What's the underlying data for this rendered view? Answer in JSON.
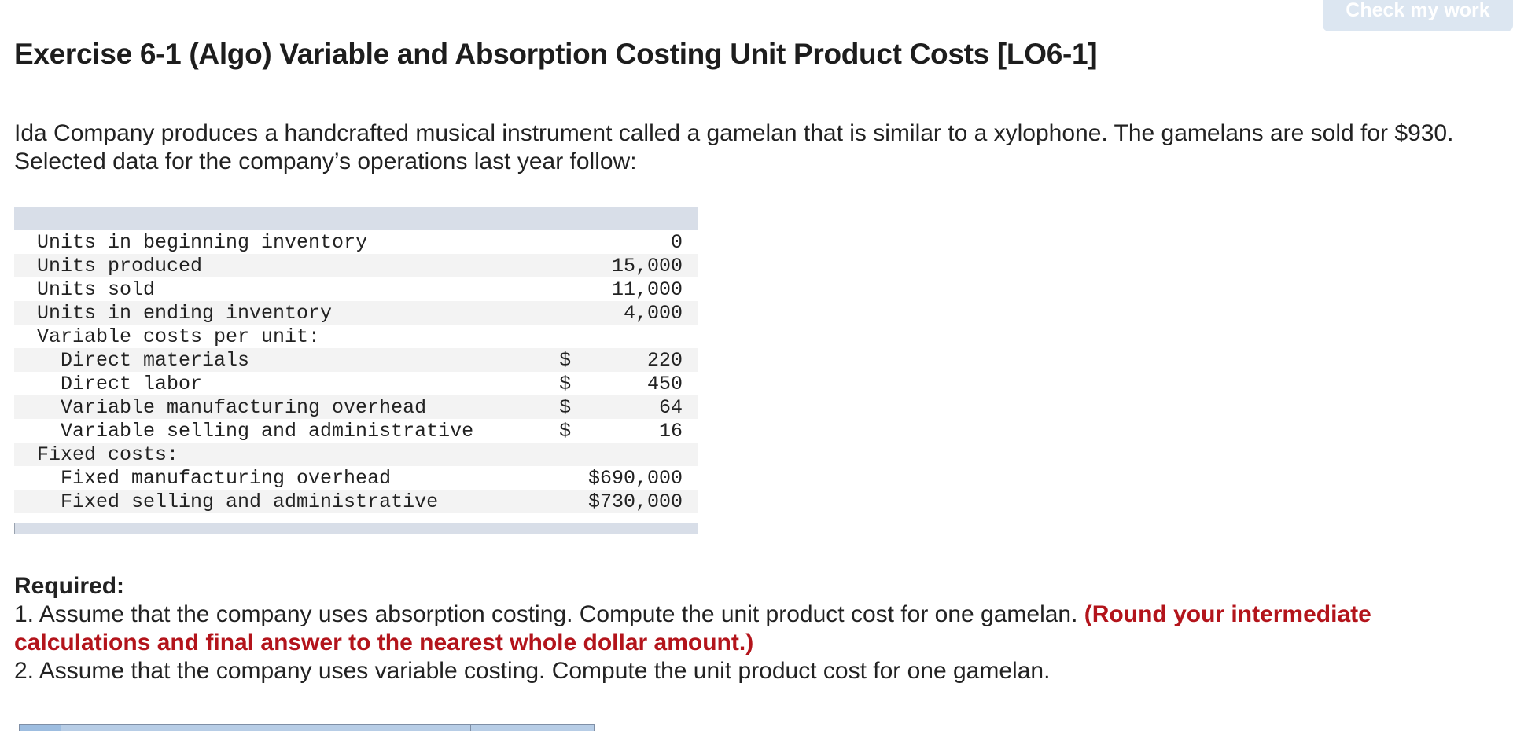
{
  "header": {
    "check_button": "Check my work",
    "title": "Exercise 6-1 (Algo) Variable and Absorption Costing Unit Product Costs [LO6-1]"
  },
  "intro": {
    "text": "Ida Company produces a handcrafted musical instrument called a gamelan that is similar to a xylophone. The gamelans are sold for $930. Selected data for the company’s operations last year follow:"
  },
  "data_table": {
    "rows": [
      {
        "label": "Units in beginning inventory",
        "indent": false,
        "currency": "",
        "value": "0"
      },
      {
        "label": "Units produced",
        "indent": false,
        "currency": "",
        "value": "15,000"
      },
      {
        "label": "Units sold",
        "indent": false,
        "currency": "",
        "value": "11,000"
      },
      {
        "label": "Units in ending inventory",
        "indent": false,
        "currency": "",
        "value": "4,000"
      },
      {
        "label": "Variable costs per unit:",
        "indent": false,
        "currency": "",
        "value": ""
      },
      {
        "label": "Direct materials",
        "indent": true,
        "currency": "$",
        "value": "220"
      },
      {
        "label": "Direct labor",
        "indent": true,
        "currency": "$",
        "value": "450"
      },
      {
        "label": "Variable manufacturing overhead",
        "indent": true,
        "currency": "$",
        "value": "64"
      },
      {
        "label": "Variable selling and administrative",
        "indent": true,
        "currency": "$",
        "value": "16"
      },
      {
        "label": "Fixed costs:",
        "indent": false,
        "currency": "",
        "value": ""
      },
      {
        "label": "Fixed manufacturing overhead",
        "indent": true,
        "currency": "",
        "value": "$690,000"
      },
      {
        "label": "Fixed selling and administrative",
        "indent": true,
        "currency": "",
        "value": "$730,000"
      }
    ]
  },
  "required": {
    "heading": "Required:",
    "item1_text": "1. Assume that the company uses absorption costing. Compute the unit product cost for one gamelan. ",
    "item1_note": "(Round your intermediate calculations and final answer to the nearest whole dollar amount.)",
    "item2_text": "2. Assume that the company uses variable costing. Compute the unit product cost for one gamelan."
  }
}
